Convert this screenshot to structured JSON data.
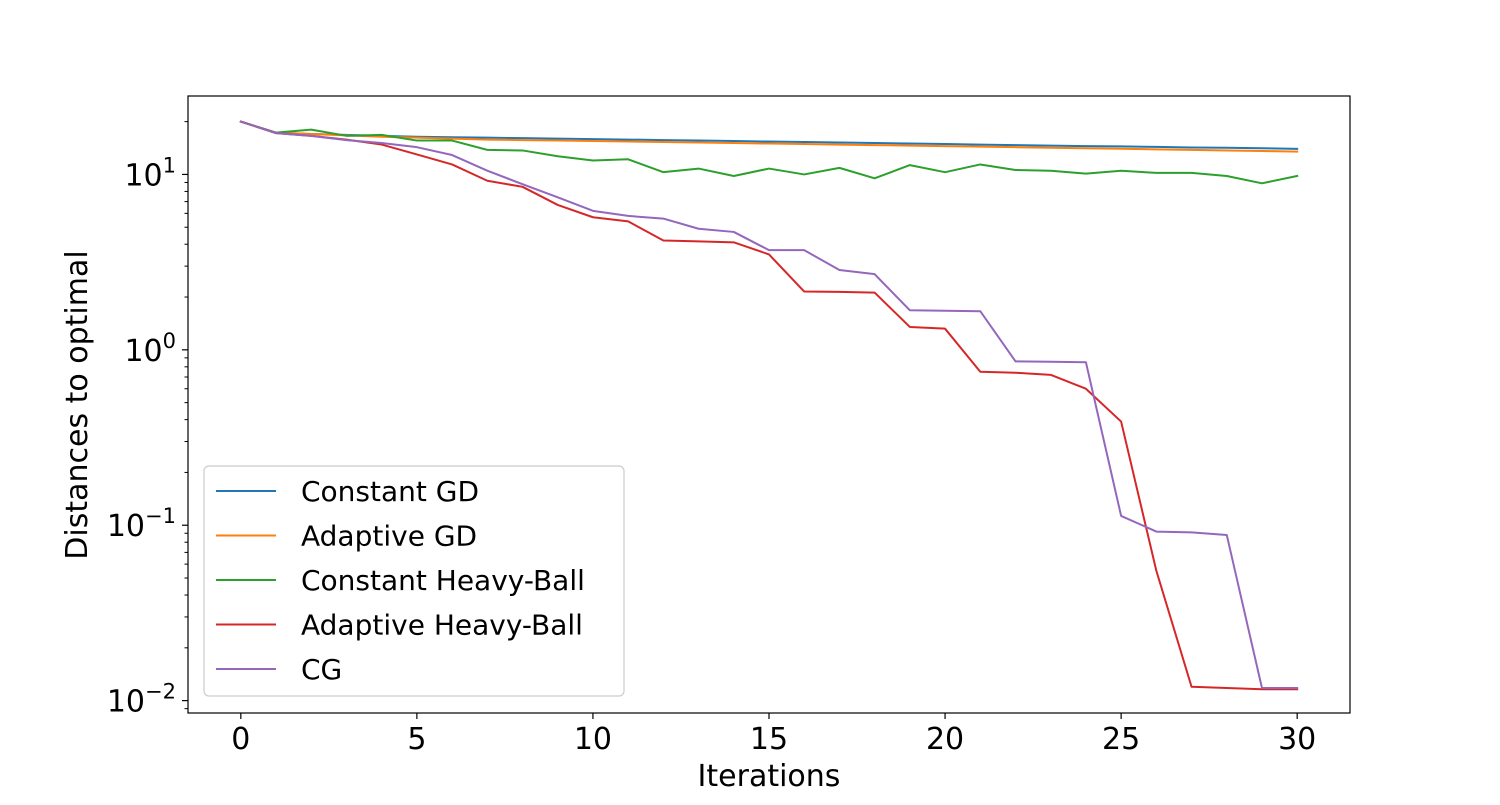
{
  "chart_data": {
    "type": "line",
    "title": "",
    "xlabel": "Iterations",
    "ylabel": "Distances to optimal",
    "xlim": [
      -1.5,
      31.5
    ],
    "ylim": [
      0.0085,
      28
    ],
    "yscale": "log",
    "grid": false,
    "legend_position": "lower-left",
    "x_ticks": [
      0,
      5,
      10,
      15,
      20,
      25,
      30
    ],
    "x_tick_labels": [
      "0",
      "5",
      "10",
      "15",
      "20",
      "25",
      "30"
    ],
    "y_ticks": [
      {
        "value": 10,
        "base": "10",
        "exp": "1"
      },
      {
        "value": 1,
        "base": "10",
        "exp": "0"
      },
      {
        "value": 0.1,
        "base": "10",
        "exp": "−1"
      },
      {
        "value": 0.01,
        "base": "10",
        "exp": "−2"
      }
    ],
    "x": [
      0,
      1,
      2,
      3,
      4,
      5,
      6,
      7,
      8,
      9,
      10,
      11,
      12,
      13,
      14,
      15,
      16,
      17,
      18,
      19,
      20,
      21,
      22,
      23,
      24,
      25,
      26,
      27,
      28,
      29,
      30
    ],
    "series": [
      {
        "name": "Constant GD",
        "color": "#1f77b4",
        "values": [
          20.0,
          17.3,
          17.0,
          16.8,
          16.6,
          16.4,
          16.3,
          16.2,
          16.1,
          16.0,
          15.9,
          15.8,
          15.7,
          15.6,
          15.5,
          15.4,
          15.3,
          15.2,
          15.1,
          15.0,
          14.9,
          14.8,
          14.7,
          14.6,
          14.5,
          14.45,
          14.35,
          14.25,
          14.2,
          14.1,
          14.0
        ]
      },
      {
        "name": "Adaptive GD",
        "color": "#ff7f0e",
        "values": [
          20.0,
          17.3,
          17.0,
          16.7,
          16.4,
          16.2,
          16.0,
          15.8,
          15.7,
          15.6,
          15.5,
          15.4,
          15.3,
          15.2,
          15.1,
          15.0,
          14.9,
          14.8,
          14.7,
          14.6,
          14.5,
          14.4,
          14.3,
          14.2,
          14.1,
          14.0,
          13.9,
          13.8,
          13.7,
          13.6,
          13.5
        ]
      },
      {
        "name": "Constant Heavy-Ball",
        "color": "#2ca02c",
        "values": [
          20.0,
          17.3,
          18.0,
          16.6,
          16.8,
          15.6,
          15.6,
          13.8,
          13.7,
          12.7,
          12.0,
          12.2,
          10.3,
          10.8,
          9.8,
          10.8,
          10.0,
          10.9,
          9.5,
          11.3,
          10.3,
          11.4,
          10.6,
          10.5,
          10.1,
          10.5,
          10.2,
          10.2,
          9.8,
          8.9,
          9.8
        ]
      },
      {
        "name": "Adaptive Heavy-Ball",
        "color": "#d62728",
        "values": [
          20.0,
          17.2,
          16.6,
          15.8,
          14.8,
          13.0,
          11.4,
          9.2,
          8.5,
          6.7,
          5.7,
          5.4,
          4.2,
          4.15,
          4.1,
          3.5,
          2.15,
          2.14,
          2.12,
          1.35,
          1.32,
          0.75,
          0.74,
          0.72,
          0.6,
          0.39,
          0.055,
          0.012,
          0.0118,
          0.0116,
          0.0116
        ]
      },
      {
        "name": "CG",
        "color": "#9467bd",
        "values": [
          20.0,
          17.2,
          16.6,
          15.7,
          15.1,
          14.3,
          12.9,
          10.5,
          8.8,
          7.4,
          6.2,
          5.8,
          5.6,
          4.9,
          4.7,
          3.7,
          3.7,
          2.85,
          2.7,
          1.68,
          1.67,
          1.66,
          0.86,
          0.855,
          0.85,
          0.113,
          0.092,
          0.091,
          0.088,
          0.0118,
          0.0118
        ]
      }
    ]
  }
}
